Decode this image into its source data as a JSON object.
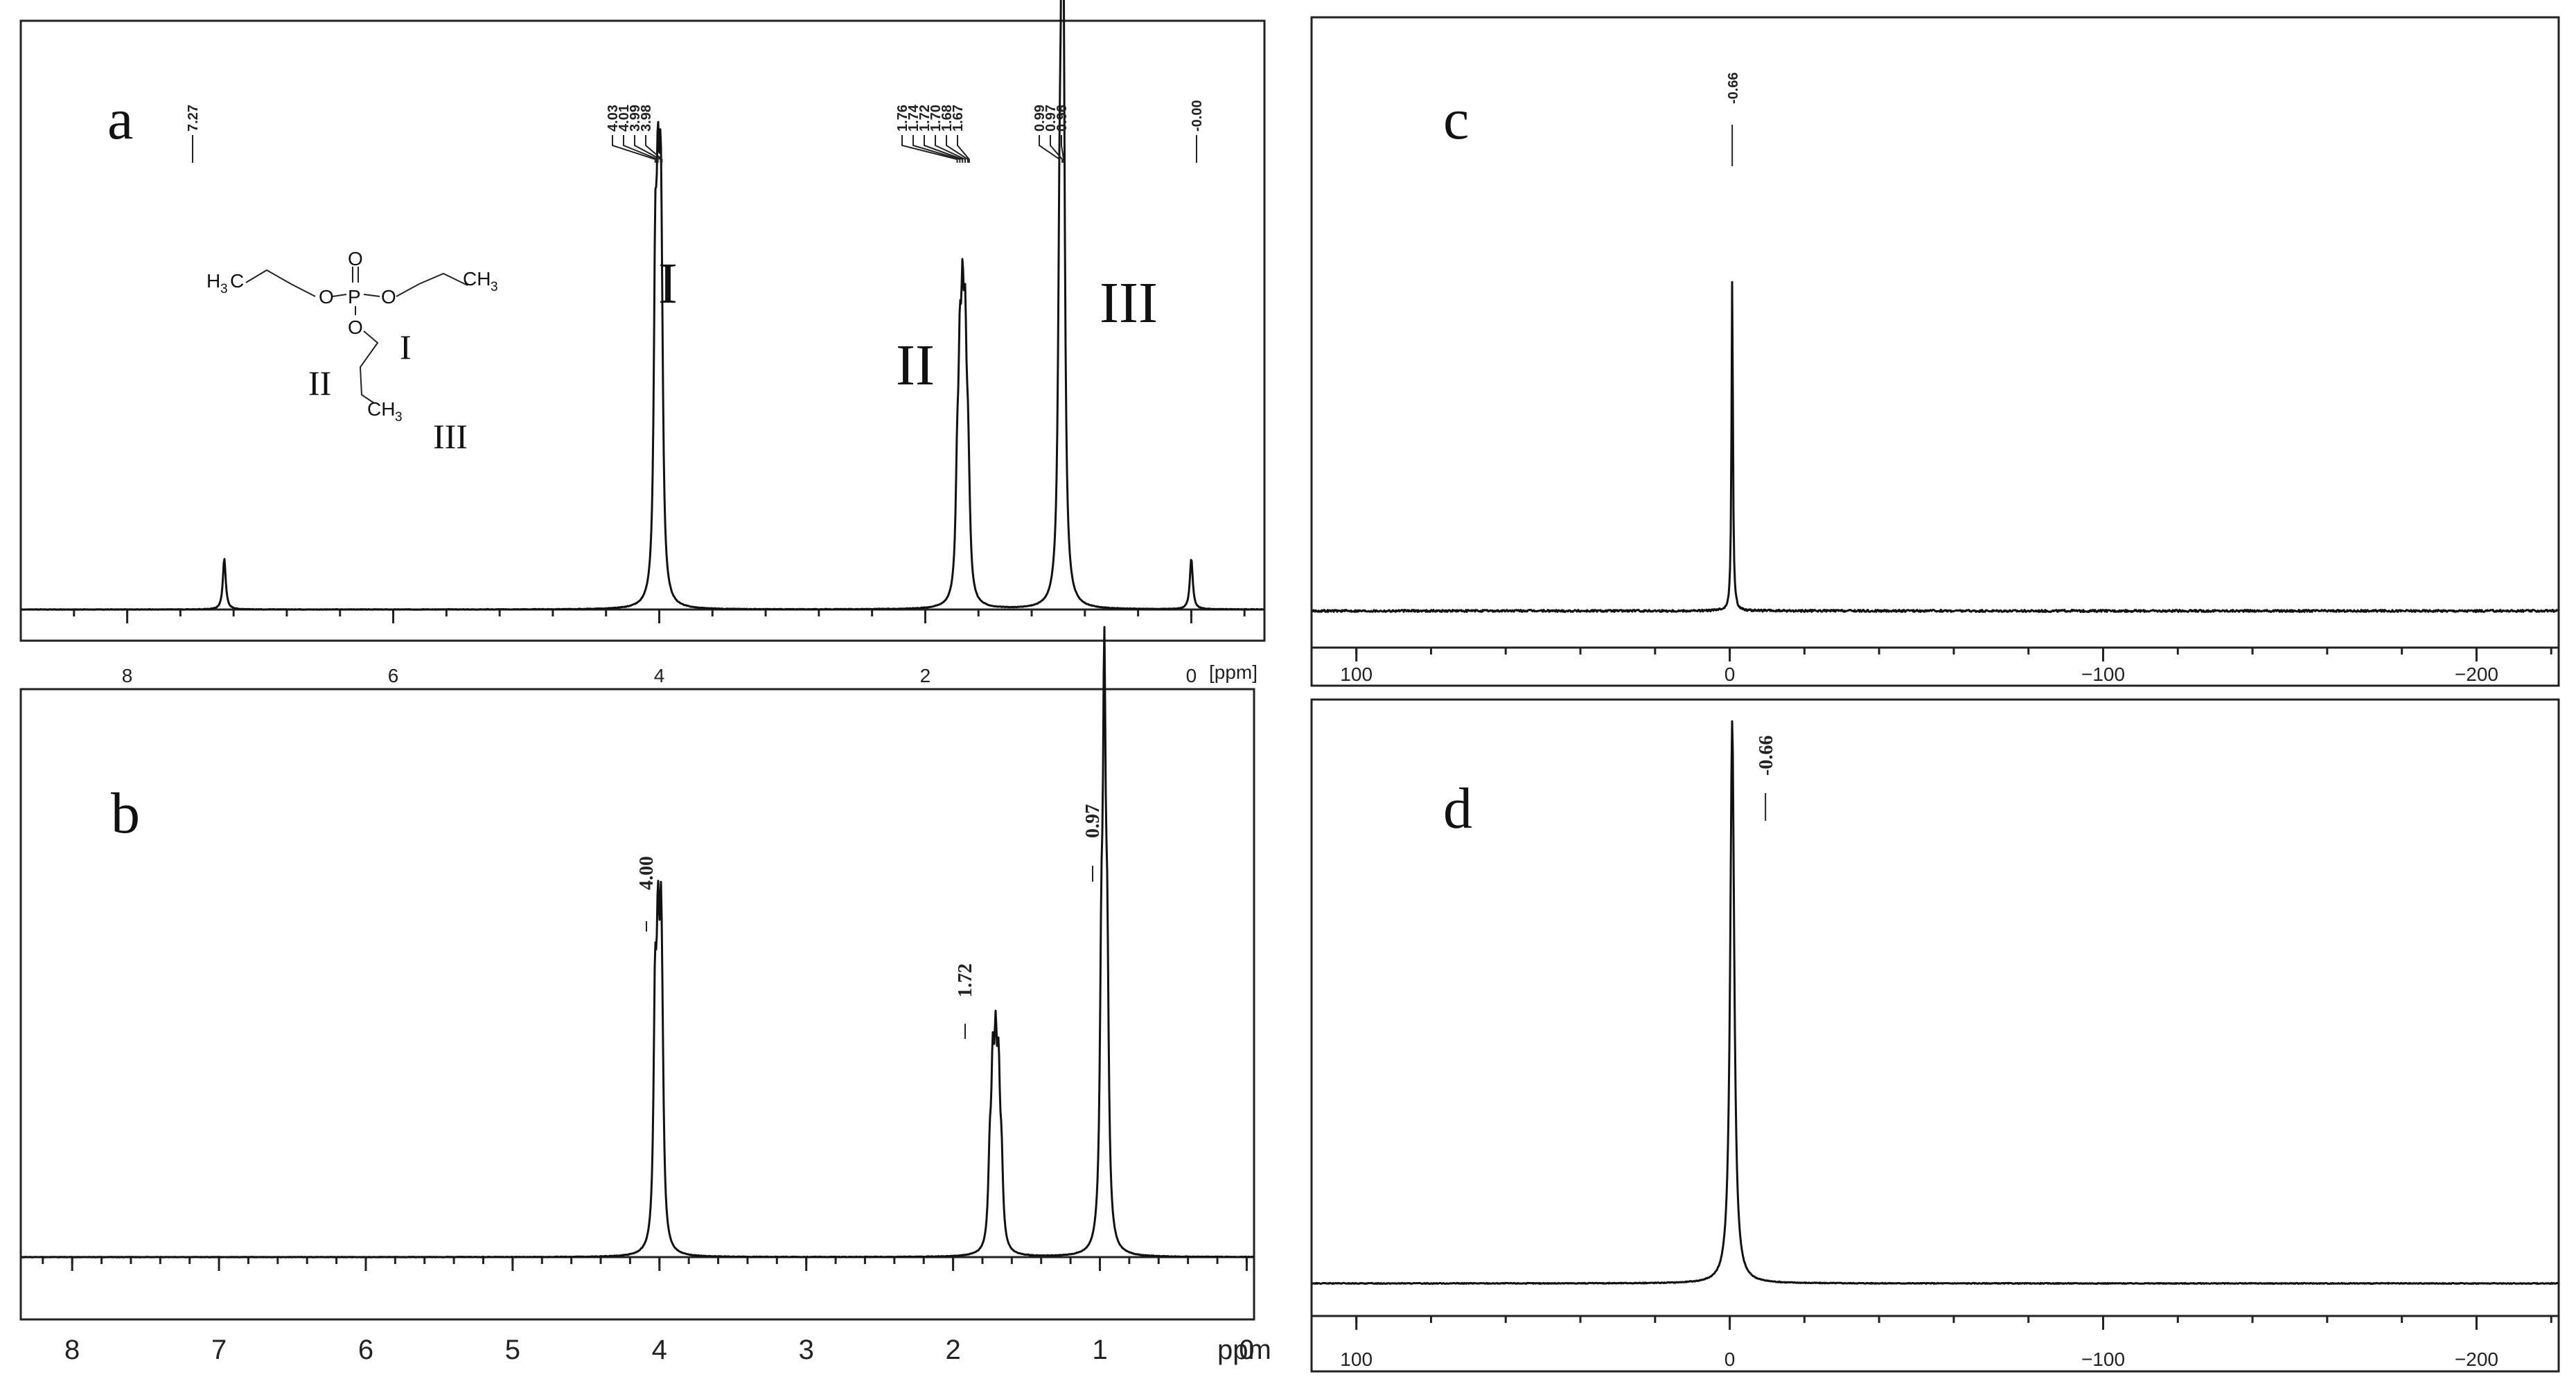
{
  "panels": {
    "a": {
      "letter": "a",
      "axis_unit": "[ppm]",
      "group_labels": [
        "I",
        "II",
        "III"
      ],
      "structure": {
        "left_ch3": "H",
        "left_ch3_sub": "3",
        "left_ch3_c": "C",
        "right_ch3": "CH",
        "right_ch3_sub": "3",
        "bottom_ch3": "CH",
        "bottom_ch3_sub": "3",
        "p": "P",
        "o_top": "O",
        "o_left": "O",
        "o_right": "O",
        "o_bottom": "O",
        "roman_I": "I",
        "roman_II": "II",
        "roman_III": "III"
      }
    },
    "b": {
      "letter": "b",
      "axis_unit": "ppm"
    },
    "c": {
      "letter": "c"
    },
    "d": {
      "letter": "d"
    }
  },
  "chart_data": [
    {
      "id": "a",
      "type": "line",
      "title": "",
      "xlabel": "[ppm]",
      "xlim": [
        8.8,
        -0.55
      ],
      "x_reversed": true,
      "xticks": [
        8,
        6,
        4,
        2,
        0
      ],
      "xtick_labels": [
        "8",
        "6",
        "4",
        "2",
        "0"
      ],
      "peak_labels": [
        "7.27",
        "4.03",
        "4.01",
        "3.99",
        "3.98",
        "1.76",
        "1.74",
        "1.72",
        "1.70",
        "1.68",
        "1.67",
        "0.99",
        "0.97",
        "0.96",
        "-0.00"
      ],
      "series": [
        {
          "peaks": [
            {
              "x": 7.27,
              "height": 0.09
            },
            {
              "x": 4.03,
              "height": 0.51
            },
            {
              "x": 4.01,
              "height": 0.53
            },
            {
              "x": 3.99,
              "height": 0.52
            },
            {
              "x": 3.98,
              "height": 0.2
            },
            {
              "x": 1.76,
              "height": 0.18
            },
            {
              "x": 1.74,
              "height": 0.33
            },
            {
              "x": 1.72,
              "height": 0.38
            },
            {
              "x": 1.7,
              "height": 0.36
            },
            {
              "x": 1.68,
              "height": 0.18
            },
            {
              "x": 1.67,
              "height": 0.05
            },
            {
              "x": 0.99,
              "height": 0.49
            },
            {
              "x": 0.97,
              "height": 1.0
            },
            {
              "x": 0.96,
              "height": 0.49
            },
            {
              "x": 0.0,
              "height": 0.09
            }
          ]
        }
      ]
    },
    {
      "id": "b",
      "type": "line",
      "title": "",
      "xlabel": "ppm",
      "xlim": [
        8.35,
        -0.05
      ],
      "x_reversed": true,
      "xticks": [
        8,
        7,
        6,
        5,
        4,
        3,
        2,
        1,
        0
      ],
      "xtick_labels": [
        "8",
        "7",
        "6",
        "5",
        "4",
        "3",
        "2",
        "1",
        "0"
      ],
      "peak_labels": [
        "4.00",
        "1.72",
        "0.97"
      ],
      "series": [
        {
          "peaks": [
            {
              "x": 4.03,
              "height": 0.43
            },
            {
              "x": 4.01,
              "height": 0.48
            },
            {
              "x": 3.99,
              "height": 0.47
            },
            {
              "x": 3.98,
              "height": 0.18
            },
            {
              "x": 1.75,
              "height": 0.15
            },
            {
              "x": 1.73,
              "height": 0.29
            },
            {
              "x": 1.71,
              "height": 0.31
            },
            {
              "x": 1.69,
              "height": 0.28
            },
            {
              "x": 1.67,
              "height": 0.14
            },
            {
              "x": 0.99,
              "height": 0.45
            },
            {
              "x": 0.97,
              "height": 1.0
            },
            {
              "x": 0.95,
              "height": 0.45
            }
          ]
        }
      ]
    },
    {
      "id": "c",
      "type": "line",
      "title": "",
      "xlabel": "",
      "xlim": [
        112,
        -222
      ],
      "x_reversed": true,
      "xticks": [
        100,
        0,
        -100,
        -200
      ],
      "xtick_labels": [
        "100",
        "0",
        "−100",
        "−200"
      ],
      "peak_labels": [
        "-0.66"
      ],
      "series": [
        {
          "peaks": [
            {
              "x": -0.66,
              "height": 1.0
            }
          ]
        }
      ]
    },
    {
      "id": "d",
      "type": "line",
      "title": "",
      "xlabel": "",
      "xlim": [
        112,
        -222
      ],
      "x_reversed": true,
      "xticks": [
        100,
        0,
        -100,
        -200
      ],
      "xtick_labels": [
        "100",
        "0",
        "−100",
        "−200"
      ],
      "peak_labels": [
        "-0.66"
      ],
      "series": [
        {
          "peaks": [
            {
              "x": -0.66,
              "height": 1.0
            }
          ]
        }
      ]
    }
  ]
}
